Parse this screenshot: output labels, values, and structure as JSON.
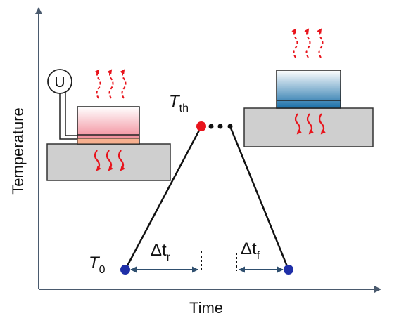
{
  "axes": {
    "x_label": "Time",
    "y_label": "Temperature"
  },
  "labels": {
    "t_threshold": {
      "symbol": "T",
      "subscript": "th"
    },
    "t_zero": {
      "symbol": "T",
      "subscript": "0"
    },
    "delta_rise": {
      "symbol": "Δt",
      "subscript": "r"
    },
    "delta_fall": {
      "symbol": "Δt",
      "subscript": "f"
    },
    "voltage_source": "U"
  },
  "colors": {
    "axis": "#4a5a6e",
    "curve": "#111111",
    "threshold_point": "#e8141c",
    "base_point": "#1f2fa8",
    "arrow_span": "#2f4f6f",
    "heat_arrow": "#e8141c",
    "substrate": "#cfcfcf",
    "hot_sample_top": "#ffffff",
    "hot_sample_bottom": "#f07a8a",
    "cold_sample_top": "#ffffff",
    "cold_sample_bottom": "#1a6fa8"
  },
  "icons": {
    "heat_out": "wavy-arrow-up-icon",
    "heat_in": "wavy-arrow-down-icon",
    "voltage_source": "circle-u-icon",
    "ellipsis": "dots-icon"
  }
}
